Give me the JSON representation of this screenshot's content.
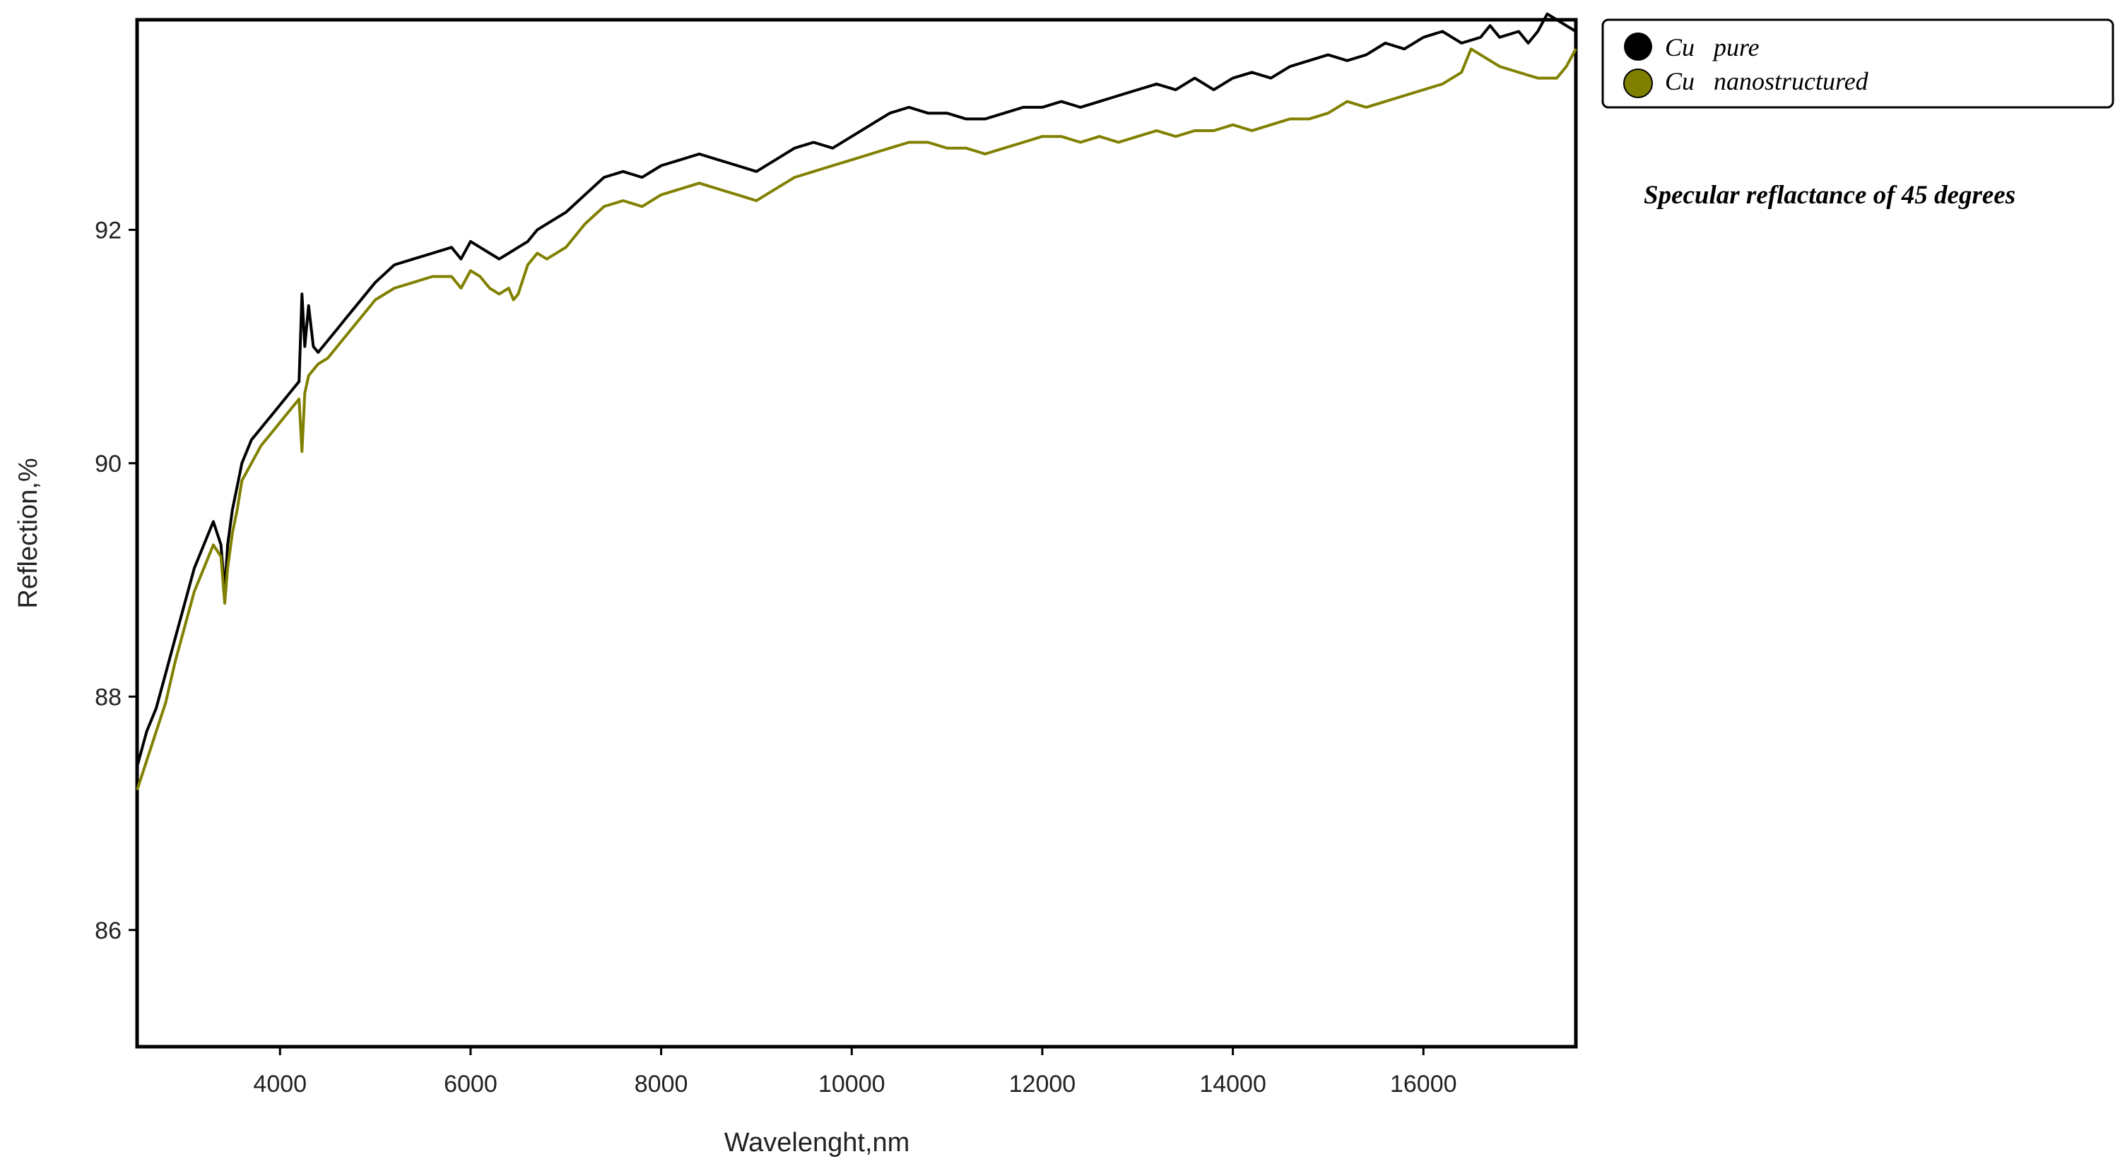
{
  "chart_data": {
    "type": "line",
    "title": "",
    "xlabel": "Wavelenght,nm",
    "ylabel": "Reflection,%",
    "xlim": [
      2500,
      17600
    ],
    "ylim": [
      85,
      93.8
    ],
    "x_ticks": [
      4000,
      6000,
      8000,
      10000,
      12000,
      14000,
      16000
    ],
    "y_ticks": [
      86,
      88,
      90,
      92
    ],
    "grid": false,
    "legend_position": "top-right, outside plot",
    "annotation": "Specular reflactance of 45 degrees",
    "series": [
      {
        "name": "Cu   pure",
        "color": "#000000",
        "x": [
          2500,
          2600,
          2700,
          2800,
          2900,
          3000,
          3100,
          3200,
          3300,
          3380,
          3420,
          3450,
          3500,
          3550,
          3600,
          3700,
          3800,
          3900,
          4000,
          4100,
          4200,
          4230,
          4260,
          4300,
          4350,
          4400,
          4500,
          4600,
          4700,
          4800,
          4900,
          5000,
          5200,
          5400,
          5600,
          5800,
          5900,
          6000,
          6100,
          6200,
          6300,
          6400,
          6500,
          6600,
          6700,
          6800,
          7000,
          7200,
          7400,
          7600,
          7800,
          8000,
          8200,
          8400,
          8600,
          8800,
          9000,
          9200,
          9400,
          9600,
          9800,
          10000,
          10200,
          10400,
          10600,
          10800,
          11000,
          11200,
          11400,
          11600,
          11800,
          12000,
          12200,
          12400,
          12600,
          12800,
          13000,
          13200,
          13400,
          13600,
          13800,
          14000,
          14200,
          14400,
          14600,
          14800,
          15000,
          15200,
          15400,
          15600,
          15800,
          16000,
          16200,
          16400,
          16600,
          16700,
          16800,
          17000,
          17100,
          17200,
          17300,
          17400,
          17500,
          17600
        ],
        "y": [
          87.4,
          87.7,
          87.9,
          88.2,
          88.5,
          88.8,
          89.1,
          89.3,
          89.5,
          89.3,
          88.9,
          89.3,
          89.6,
          89.8,
          90.0,
          90.2,
          90.3,
          90.4,
          90.5,
          90.6,
          90.7,
          91.45,
          91.0,
          91.35,
          91.0,
          90.95,
          91.05,
          91.15,
          91.25,
          91.35,
          91.45,
          91.55,
          91.7,
          91.75,
          91.8,
          91.85,
          91.75,
          91.9,
          91.85,
          91.8,
          91.75,
          91.8,
          91.85,
          91.9,
          92.0,
          92.05,
          92.15,
          92.3,
          92.45,
          92.5,
          92.45,
          92.55,
          92.6,
          92.65,
          92.6,
          92.55,
          92.5,
          92.6,
          92.7,
          92.75,
          92.7,
          92.8,
          92.9,
          93.0,
          93.05,
          93.0,
          93.0,
          92.95,
          92.95,
          93.0,
          93.05,
          93.05,
          93.1,
          93.05,
          93.1,
          93.15,
          93.2,
          93.25,
          93.2,
          93.3,
          93.2,
          93.3,
          93.35,
          93.3,
          93.4,
          93.45,
          93.5,
          93.45,
          93.5,
          93.6,
          93.55,
          93.65,
          93.7,
          93.6,
          93.65,
          93.75,
          93.65,
          93.7,
          93.6,
          93.7,
          93.85,
          93.8,
          93.75,
          93.7
        ],
        "line_width": 2.5
      },
      {
        "name": "Cu   nanostructured",
        "color": "#808000",
        "x": [
          2500,
          2600,
          2700,
          2800,
          2900,
          3000,
          3100,
          3200,
          3300,
          3380,
          3420,
          3450,
          3500,
          3550,
          3600,
          3700,
          3800,
          3900,
          4000,
          4100,
          4200,
          4230,
          4260,
          4300,
          4350,
          4400,
          4500,
          4600,
          4700,
          4800,
          4900,
          5000,
          5200,
          5400,
          5600,
          5800,
          5900,
          6000,
          6100,
          6200,
          6300,
          6400,
          6450,
          6500,
          6600,
          6700,
          6800,
          7000,
          7200,
          7400,
          7600,
          7800,
          8000,
          8200,
          8400,
          8600,
          8800,
          9000,
          9200,
          9400,
          9600,
          9800,
          10000,
          10200,
          10400,
          10600,
          10800,
          11000,
          11200,
          11400,
          11600,
          11800,
          12000,
          12200,
          12400,
          12600,
          12800,
          13000,
          13200,
          13400,
          13600,
          13800,
          14000,
          14200,
          14400,
          14600,
          14800,
          15000,
          15200,
          15400,
          15600,
          15800,
          16000,
          16200,
          16400,
          16500,
          16600,
          16700,
          16800,
          17000,
          17200,
          17300,
          17400,
          17500,
          17600
        ],
        "y": [
          87.2,
          87.45,
          87.7,
          87.95,
          88.3,
          88.6,
          88.9,
          89.1,
          89.3,
          89.2,
          88.8,
          89.1,
          89.4,
          89.6,
          89.85,
          90.0,
          90.15,
          90.25,
          90.35,
          90.45,
          90.55,
          90.1,
          90.6,
          90.75,
          90.8,
          90.85,
          90.9,
          91.0,
          91.1,
          91.2,
          91.3,
          91.4,
          91.5,
          91.55,
          91.6,
          91.6,
          91.5,
          91.65,
          91.6,
          91.5,
          91.45,
          91.5,
          91.4,
          91.45,
          91.7,
          91.8,
          91.75,
          91.85,
          92.05,
          92.2,
          92.25,
          92.2,
          92.3,
          92.35,
          92.4,
          92.35,
          92.3,
          92.25,
          92.35,
          92.45,
          92.5,
          92.55,
          92.6,
          92.65,
          92.7,
          92.75,
          92.75,
          92.7,
          92.7,
          92.65,
          92.7,
          92.75,
          92.8,
          92.8,
          92.75,
          92.8,
          92.75,
          92.8,
          92.85,
          92.8,
          92.85,
          92.85,
          92.9,
          92.85,
          92.9,
          92.95,
          92.95,
          93.0,
          93.1,
          93.05,
          93.1,
          93.15,
          93.2,
          93.25,
          93.35,
          93.55,
          93.5,
          93.45,
          93.4,
          93.35,
          93.3,
          93.3,
          93.3,
          93.4,
          93.55
        ],
        "line_width": 2.5
      }
    ]
  }
}
